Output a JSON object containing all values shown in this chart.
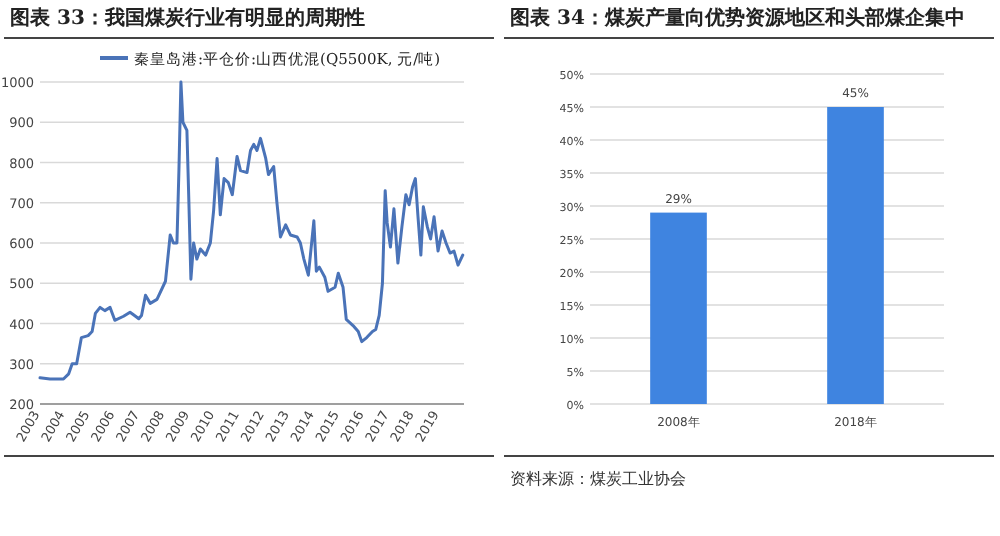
{
  "chart_data": [
    {
      "type": "line",
      "title": "图表 33：我国煤炭行业有明显的周期性",
      "legend": "top",
      "grid": "y",
      "xlim": [
        2003,
        2020
      ],
      "xticks": [
        2003,
        2004,
        2005,
        2006,
        2007,
        2008,
        2009,
        2010,
        2011,
        2012,
        2013,
        2014,
        2015,
        2016,
        2017,
        2018,
        2019
      ],
      "ylim": [
        200,
        1000
      ],
      "yticks": [
        200,
        300,
        400,
        500,
        600,
        700,
        800,
        900,
        1000
      ],
      "x": [
        2003.0,
        2003.4,
        2003.94,
        2004.15,
        2004.29,
        2004.47,
        2004.66,
        2004.93,
        2005.09,
        2005.22,
        2005.41,
        2005.6,
        2005.81,
        2006.0,
        2006.35,
        2006.61,
        2006.83,
        2006.96,
        2007.07,
        2007.23,
        2007.42,
        2007.69,
        2008.03,
        2008.22,
        2008.35,
        2008.49,
        2008.57,
        2008.65,
        2008.73,
        2008.89,
        2008.97,
        2009.05,
        2009.16,
        2009.29,
        2009.43,
        2009.64,
        2009.83,
        2009.96,
        2010.1,
        2010.23,
        2010.38,
        2010.55,
        2010.71,
        2010.9,
        2011.04,
        2011.3,
        2011.44,
        2011.57,
        2011.7,
        2011.84,
        2012.05,
        2012.16,
        2012.37,
        2012.5,
        2012.64,
        2012.85,
        2013.04,
        2013.31,
        2013.44,
        2013.58,
        2013.76,
        2013.98,
        2014.08,
        2014.2,
        2014.42,
        2014.55,
        2014.83,
        2014.96,
        2015.15,
        2015.28,
        2015.55,
        2015.76,
        2015.9,
        2016.1,
        2016.33,
        2016.46,
        2016.6,
        2016.73,
        2016.84,
        2016.92,
        2017.05,
        2017.19,
        2017.35,
        2017.51,
        2017.67,
        2017.8,
        2017.94,
        2018.05,
        2018.15,
        2018.27,
        2018.37,
        2018.53,
        2018.66,
        2018.8,
        2018.96,
        2019.12,
        2019.28,
        2019.44,
        2019.6,
        2019.76,
        2019.95
      ],
      "series": [
        {
          "name": "秦皇岛港:平仓价:山西优混(Q5500K, 元/吨)",
          "color": "#4a73b8",
          "values": [
            265,
            262,
            262,
            275,
            300,
            300,
            365,
            370,
            380,
            425,
            440,
            432,
            440,
            408,
            418,
            428,
            418,
            412,
            420,
            470,
            450,
            460,
            505,
            620,
            600,
            600,
            780,
            1000,
            900,
            880,
            700,
            510,
            600,
            560,
            585,
            570,
            600,
            680,
            810,
            670,
            760,
            750,
            720,
            815,
            780,
            775,
            830,
            845,
            830,
            860,
            810,
            770,
            790,
            700,
            615,
            645,
            620,
            615,
            600,
            560,
            520,
            655,
            530,
            540,
            515,
            480,
            490,
            525,
            490,
            410,
            395,
            380,
            355,
            365,
            380,
            385,
            420,
            500,
            730,
            650,
            590,
            685,
            550,
            640,
            720,
            695,
            740,
            760,
            670,
            570,
            690,
            640,
            610,
            665,
            580,
            630,
            600,
            575,
            580,
            545,
            570
          ]
        }
      ]
    },
    {
      "type": "bar",
      "title": "图表 34：煤炭产量向优势资源地区和头部煤企集中",
      "grid": "y",
      "categories": [
        "2008年",
        "2018年"
      ],
      "values": [
        29,
        45
      ],
      "color": "#3f84e0",
      "value_labels": [
        "29%",
        "45%"
      ],
      "ylim": [
        0,
        50
      ],
      "yticks": [
        {
          "value": 0,
          "label": "0%"
        },
        {
          "value": 5,
          "label": "5%"
        },
        {
          "value": 10,
          "label": "10%"
        },
        {
          "value": 15,
          "label": "15%"
        },
        {
          "value": 20,
          "label": "20%"
        },
        {
          "value": 25,
          "label": "25%"
        },
        {
          "value": 30,
          "label": "30%"
        },
        {
          "value": 35,
          "label": "35%"
        },
        {
          "value": 40,
          "label": "40%"
        },
        {
          "value": 45,
          "label": "45%"
        },
        {
          "value": 50,
          "label": "50%"
        }
      ],
      "annotations": [
        "资料来源：煤炭工业协会"
      ]
    }
  ]
}
